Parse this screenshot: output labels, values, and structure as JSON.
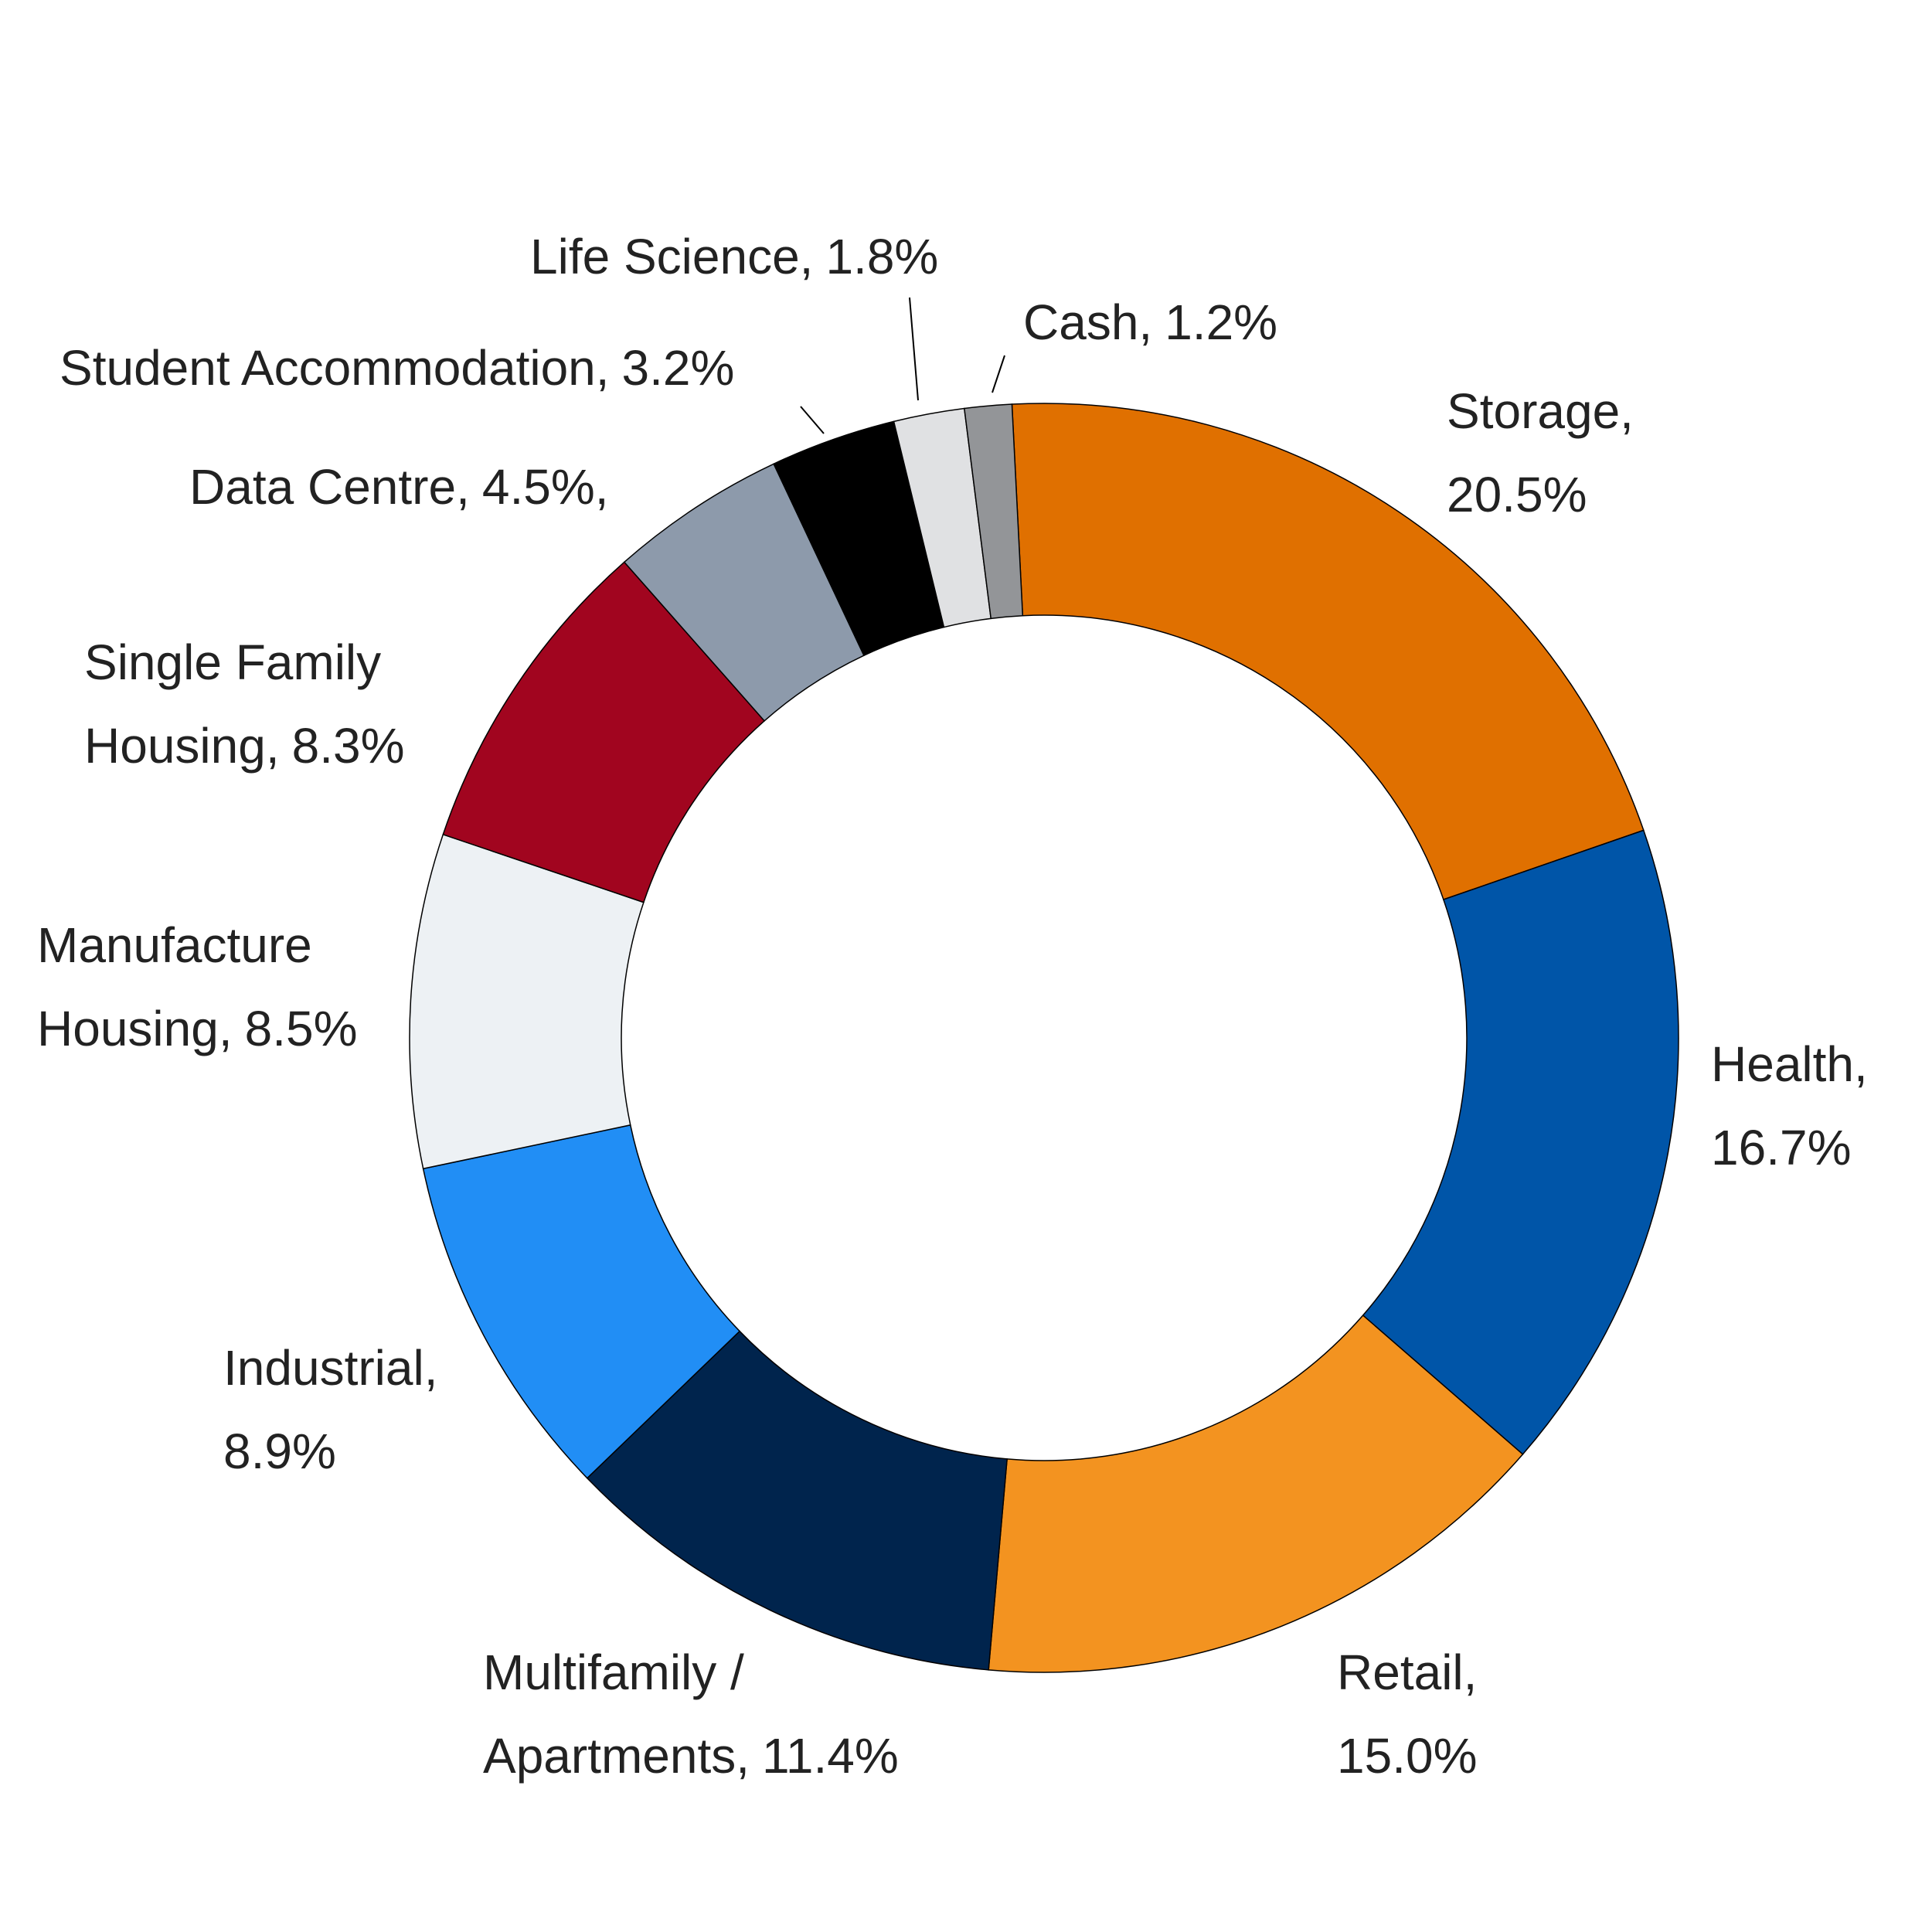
{
  "chart_data": {
    "type": "donut",
    "categories": [
      "Storage,",
      "Health,",
      "Retail,",
      "Multifamily / Apartments,",
      "Industrial,",
      "Manufacture Housing,",
      "Single Family Housing,",
      "Data Centre,",
      "Student Accommodation,",
      "Life Science,",
      "Cash,"
    ],
    "values": [
      20.5,
      16.7,
      15.0,
      11.4,
      8.9,
      8.5,
      8.3,
      4.5,
      3.2,
      1.8,
      1.2
    ],
    "value_labels": [
      "20.5%",
      "16.7%",
      "15.0%",
      "11.4%",
      "8.9%",
      "8.5%",
      "8.3%",
      "4.5%,",
      "3.2%",
      "1.8%",
      "1.2%"
    ],
    "colors": [
      "#e07000",
      "#0055a8",
      "#f39320",
      "#00244d",
      "#218ef5",
      "#edf1f4",
      "#a1051f",
      "#8d9aab",
      "#000000",
      "#e0e1e3",
      "#939598"
    ]
  }
}
